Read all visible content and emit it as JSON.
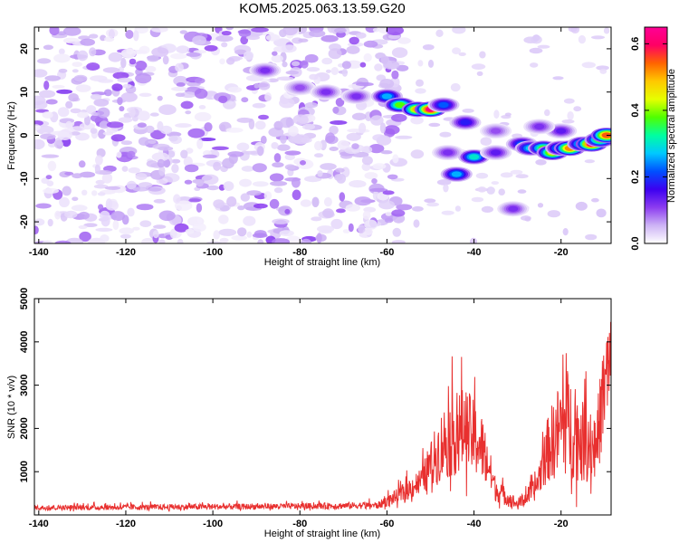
{
  "title": "KOM5.2025.063.13.59.G20",
  "chart_data": [
    {
      "type": "heatmap",
      "xlabel": "Height of straight line (km)",
      "ylabel": "Frequency (Hz)",
      "xlim": [
        -141,
        -8.5
      ],
      "ylim": [
        -25,
        25
      ],
      "x_ticks": [
        -140,
        -120,
        -100,
        -80,
        -60,
        -40,
        -20
      ],
      "y_ticks": [
        -20,
        -10,
        0,
        10,
        20
      ],
      "colorbar": {
        "label": "Normalized spectral amplitude",
        "range": [
          0.0,
          0.65
        ],
        "ticks": [
          0.0,
          0.2,
          0.4,
          0.6
        ],
        "colormap": [
          "#ffffff",
          "#cdb3f5",
          "#8c3cf0",
          "#3c00f0",
          "#0050ff",
          "#00c8ff",
          "#00ffa0",
          "#50ff00",
          "#e6ff00",
          "#ffc800",
          "#ff6400",
          "#ff0064",
          "#ff0096"
        ]
      },
      "background_noise": {
        "x_range": [
          -141,
          -56
        ],
        "y_range": [
          -25,
          25
        ],
        "amplitude_range": [
          0.0,
          0.1
        ]
      },
      "hotspots": [
        {
          "x": -88,
          "y": 15,
          "value": 0.12
        },
        {
          "x": -80,
          "y": 11,
          "value": 0.1
        },
        {
          "x": -74,
          "y": 10,
          "value": 0.12
        },
        {
          "x": -67,
          "y": 9,
          "value": 0.12
        },
        {
          "x": -60,
          "y": 9,
          "value": 0.26
        },
        {
          "x": -57,
          "y": 7,
          "value": 0.38
        },
        {
          "x": -53,
          "y": 6,
          "value": 0.5
        },
        {
          "x": -50,
          "y": 6,
          "value": 0.62
        },
        {
          "x": -47,
          "y": 7,
          "value": 0.22
        },
        {
          "x": -42,
          "y": 3,
          "value": 0.18
        },
        {
          "x": -46,
          "y": -4,
          "value": 0.12
        },
        {
          "x": -44,
          "y": -9,
          "value": 0.26
        },
        {
          "x": -40,
          "y": -5,
          "value": 0.3
        },
        {
          "x": -35,
          "y": -4,
          "value": 0.14
        },
        {
          "x": -31,
          "y": -17,
          "value": 0.12
        },
        {
          "x": -29,
          "y": -2,
          "value": 0.22
        },
        {
          "x": -27,
          "y": -3,
          "value": 0.28
        },
        {
          "x": -24,
          "y": -3,
          "value": 0.38
        },
        {
          "x": -22,
          "y": -4,
          "value": 0.45
        },
        {
          "x": -20,
          "y": -3,
          "value": 0.32
        },
        {
          "x": -18,
          "y": -3,
          "value": 0.52
        },
        {
          "x": -15,
          "y": -2,
          "value": 0.35
        },
        {
          "x": -13,
          "y": -2,
          "value": 0.6
        },
        {
          "x": -11,
          "y": -1,
          "value": 0.4
        },
        {
          "x": -9.5,
          "y": 0,
          "value": 0.55
        },
        {
          "x": -20,
          "y": 1,
          "value": 0.14
        },
        {
          "x": -25,
          "y": 2,
          "value": 0.12
        },
        {
          "x": -35,
          "y": 1,
          "value": 0.1
        }
      ]
    },
    {
      "type": "line",
      "xlabel": "Height of straight line (km)",
      "ylabel": "SNR (10 * v/v)",
      "xlim": [
        -141,
        -8.5
      ],
      "ylim": [
        0,
        5000
      ],
      "x_ticks": [
        -140,
        -120,
        -100,
        -80,
        -60,
        -40,
        -20
      ],
      "y_ticks": [
        1000,
        2000,
        3000,
        4000,
        5000
      ],
      "color": "#e8302f",
      "envelope": [
        {
          "x": -141,
          "mean": 150,
          "spread": 200
        },
        {
          "x": -112,
          "mean": 160,
          "spread": 250
        },
        {
          "x": -80,
          "mean": 180,
          "spread": 250
        },
        {
          "x": -62,
          "mean": 200,
          "spread": 300
        },
        {
          "x": -57,
          "mean": 400,
          "spread": 700
        },
        {
          "x": -52,
          "mean": 700,
          "spread": 1200
        },
        {
          "x": -47,
          "mean": 1400,
          "spread": 3200
        },
        {
          "x": -42,
          "mean": 1700,
          "spread": 3600
        },
        {
          "x": -38,
          "mean": 1300,
          "spread": 2800
        },
        {
          "x": -35,
          "mean": 500,
          "spread": 1000
        },
        {
          "x": -30,
          "mean": 200,
          "spread": 500
        },
        {
          "x": -26,
          "mean": 500,
          "spread": 900
        },
        {
          "x": -23,
          "mean": 1300,
          "spread": 2800
        },
        {
          "x": -19,
          "mean": 1800,
          "spread": 4800
        },
        {
          "x": -15,
          "mean": 1400,
          "spread": 3400
        },
        {
          "x": -12,
          "mean": 1300,
          "spread": 2800
        },
        {
          "x": -10,
          "mean": 2600,
          "spread": 4600
        },
        {
          "x": -8.5,
          "mean": 3000,
          "spread": 4800
        }
      ]
    }
  ]
}
